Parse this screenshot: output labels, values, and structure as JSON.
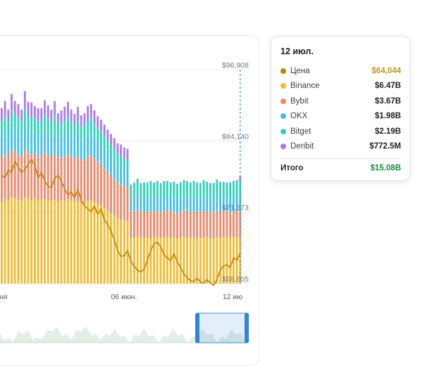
{
  "chart_data": {
    "type": "bar",
    "stacked": true,
    "y_ticks": [
      "$96,908",
      "$84,140",
      "$71,373",
      "$58,605"
    ],
    "x_ticks": [
      {
        "label": "ня",
        "index": 0
      },
      {
        "label": "06 июн.",
        "index": 38
      },
      {
        "label": "12 ию",
        "index": 72
      }
    ],
    "price_axis": {
      "min": 58605,
      "max": 96908
    },
    "volume_axis_max_billions": 30,
    "series": [
      {
        "name": "Binance",
        "color": "#f3ba2f",
        "values": [
          11.5,
          11.9,
          11.7,
          12.2,
          12.0,
          11.8,
          11.6,
          12.1,
          11.9,
          11.7,
          12.0,
          11.6,
          11.8,
          11.9,
          11.7,
          11.6,
          11.8,
          11.5,
          11.7,
          11.6,
          11.9,
          11.7,
          11.5,
          11.6,
          11.4,
          11.3,
          11.6,
          11.7,
          11.5,
          11.2,
          11.0,
          10.6,
          10.2,
          9.9,
          9.6,
          9.2,
          9.0,
          8.9,
          8.8,
          6.4,
          6.5,
          6.6,
          6.4,
          6.5,
          6.4,
          6.3,
          6.6,
          6.5,
          6.4,
          6.5,
          6.6,
          6.4,
          6.5,
          6.3,
          6.4,
          6.6,
          6.5,
          6.4,
          6.5,
          6.3,
          6.4,
          6.5,
          6.6,
          6.4,
          6.3,
          6.5,
          6.4,
          6.6,
          6.5,
          6.4,
          6.5,
          6.6,
          6.47
        ]
      },
      {
        "name": "Bybit",
        "color": "#f0876a",
        "values": [
          6.2,
          6.4,
          6.1,
          6.6,
          6.5,
          6.3,
          6.2,
          6.7,
          6.4,
          6.5,
          6.3,
          6.1,
          6.2,
          6.5,
          6.3,
          6.2,
          6.4,
          6.1,
          6.0,
          6.2,
          6.3,
          6.1,
          6.0,
          6.2,
          5.9,
          6.0,
          6.3,
          6.2,
          6.1,
          5.9,
          5.8,
          5.6,
          5.5,
          5.3,
          5.1,
          5.0,
          4.9,
          4.8,
          4.7,
          3.7,
          3.6,
          3.8,
          3.7,
          3.6,
          3.7,
          3.8,
          3.6,
          3.7,
          3.5,
          3.8,
          3.7,
          3.6,
          3.7,
          3.5,
          3.6,
          3.8,
          3.7,
          3.6,
          3.7,
          3.8,
          3.6,
          3.7,
          3.5,
          3.6,
          3.7,
          3.8,
          3.6,
          3.7,
          3.6,
          3.5,
          3.7,
          3.6,
          3.67
        ]
      },
      {
        "name": "OKX",
        "color": "#43bde8",
        "values": [
          3.0,
          3.1,
          2.9,
          3.2,
          3.0,
          3.1,
          2.9,
          3.3,
          3.0,
          3.1,
          2.9,
          3.0,
          2.9,
          3.1,
          3.0,
          2.9,
          3.1,
          2.8,
          2.9,
          3.0,
          3.1,
          2.9,
          2.8,
          3.0,
          2.8,
          2.9,
          3.0,
          3.1,
          2.9,
          2.8,
          2.7,
          2.7,
          2.6,
          2.5,
          2.5,
          2.4,
          2.4,
          2.3,
          2.3,
          1.9,
          2.0,
          2.1,
          2.0,
          1.9,
          2.0,
          2.0,
          1.9,
          2.1,
          2.0,
          1.9,
          2.0,
          2.0,
          1.9,
          2.1,
          2.0,
          1.9,
          2.0,
          2.1,
          2.0,
          1.9,
          2.0,
          2.1,
          2.0,
          2.0,
          1.9,
          2.1,
          2.0,
          2.0,
          1.9,
          2.0,
          2.1,
          2.0,
          1.98
        ]
      },
      {
        "name": "Bitget",
        "color": "#2ed3b7",
        "values": [
          2.1,
          2.2,
          2.0,
          2.3,
          2.1,
          2.2,
          2.0,
          2.4,
          2.1,
          2.2,
          2.0,
          2.1,
          2.0,
          2.2,
          2.1,
          2.0,
          2.2,
          1.9,
          2.0,
          2.1,
          2.2,
          2.0,
          1.9,
          2.1,
          1.9,
          2.0,
          2.1,
          2.2,
          2.0,
          1.9,
          1.9,
          1.8,
          1.8,
          1.7,
          1.7,
          1.6,
          1.6,
          1.6,
          1.5,
          1.9,
          2.0,
          2.1,
          2.0,
          2.1,
          2.0,
          2.2,
          2.1,
          2.0,
          2.1,
          2.2,
          2.0,
          2.1,
          2.2,
          2.0,
          2.1,
          2.2,
          2.1,
          2.0,
          2.2,
          2.1,
          2.0,
          2.2,
          2.1,
          2.0,
          2.2,
          2.1,
          2.2,
          2.0,
          2.1,
          2.2,
          2.1,
          2.2,
          2.19
        ]
      },
      {
        "name": "Deribit",
        "color": "#a97af0",
        "values": [
          1.8,
          2.0,
          1.7,
          2.3,
          2.0,
          1.8,
          1.7,
          2.5,
          2.1,
          1.9,
          1.7,
          1.8,
          1.7,
          2.0,
          1.9,
          1.7,
          2.1,
          1.6,
          1.7,
          1.9,
          2.0,
          1.7,
          1.6,
          1.9,
          1.6,
          1.7,
          1.9,
          2.0,
          1.8,
          1.7,
          1.6,
          1.6,
          1.5,
          1.6,
          1.5,
          1.5,
          1.6,
          1.5,
          1.6,
          0.0,
          0.1,
          0.1,
          0.0,
          0.1,
          0.1,
          0.1,
          0.0,
          0.1,
          0.1,
          0.0,
          0.1,
          0.1,
          0.0,
          0.1,
          0.1,
          0.0,
          0.1,
          0.1,
          0.0,
          0.1,
          0.1,
          0.0,
          0.1,
          0.1,
          0.0,
          0.1,
          0.1,
          0.0,
          0.1,
          0.1,
          0.0,
          0.1,
          0.77
        ]
      }
    ],
    "price": {
      "name": "Цена",
      "color": "#b8860b",
      "values": [
        78000,
        77500,
        79000,
        78500,
        80500,
        79500,
        78500,
        79000,
        80000,
        80800,
        79800,
        77500,
        78500,
        77000,
        76000,
        75800,
        77500,
        78000,
        77000,
        75500,
        74500,
        75000,
        74000,
        75500,
        73500,
        72500,
        72000,
        71500,
        72500,
        71000,
        72000,
        70000,
        69200,
        68000,
        66500,
        64500,
        63500,
        63600,
        64500,
        62600,
        61700,
        61000,
        60700,
        61200,
        62800,
        64500,
        65800,
        66000,
        65200,
        63800,
        63200,
        62700,
        64000,
        62500,
        61500,
        60300,
        59700,
        59100,
        59000,
        59600,
        58900,
        58700,
        59300,
        58700,
        58300,
        59400,
        61000,
        61800,
        62000,
        61500,
        63200,
        62800,
        64044
      ]
    },
    "tooltip": {
      "date": "12 июл.",
      "rows": [
        {
          "name": "Цена",
          "value": "$64,044",
          "color": "#b8860b",
          "value_color": "#c8951d"
        },
        {
          "name": "Binance",
          "value": "$6.47B",
          "color": "#f3ba2f"
        },
        {
          "name": "Bybit",
          "value": "$3.67B",
          "color": "#f0876a"
        },
        {
          "name": "OKX",
          "value": "$1.98B",
          "color": "#43bde8"
        },
        {
          "name": "Bitget",
          "value": "$2.19B",
          "color": "#2ed3b7"
        },
        {
          "name": "Deribit",
          "value": "$772.5M",
          "color": "#a97af0"
        }
      ],
      "total_label": "Итого",
      "total_value": "$15.08B",
      "total_color": "#1b8a3a"
    }
  }
}
